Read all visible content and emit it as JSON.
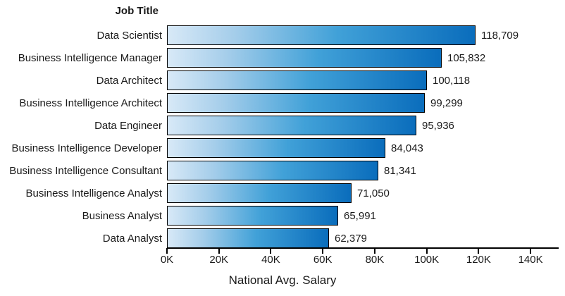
{
  "chart_data": {
    "type": "bar",
    "orientation": "horizontal",
    "title": "Job Title",
    "xlabel": "National Avg. Salary",
    "categories": [
      "Data Scientist",
      "Business Intelligence Manager",
      "Data Architect",
      "Business Intelligence Architect",
      "Data Engineer",
      "Business Intelligence Developer",
      "Business Intelligence Consultant",
      "Business Intelligence Analyst",
      "Business Analyst",
      "Data Analyst"
    ],
    "values": [
      118709,
      105832,
      100118,
      99299,
      95936,
      84043,
      81341,
      71050,
      65991,
      62379
    ],
    "value_labels": [
      "118,709",
      "105,832",
      "100,118",
      "99,299",
      "95,936",
      "84,043",
      "81,341",
      "71,050",
      "65,991",
      "62,379"
    ],
    "x_ticks": [
      {
        "value": 0,
        "label": "0K"
      },
      {
        "value": 20000,
        "label": "20K"
      },
      {
        "value": 40000,
        "label": "40K"
      },
      {
        "value": 60000,
        "label": "60K"
      },
      {
        "value": 80000,
        "label": "80K"
      },
      {
        "value": 100000,
        "label": "100K"
      },
      {
        "value": 120000,
        "label": "120K"
      },
      {
        "value": 140000,
        "label": "140K"
      }
    ],
    "xlim": [
      0,
      150000
    ],
    "grid": false,
    "legend": "none",
    "colors": {
      "bar_gradient_start": "#d8e9f7",
      "bar_gradient_quarter": "#a4cdea",
      "bar_gradient_mid": "#41a1d8",
      "bar_gradient_end": "#0a6dbc",
      "bar_border": "#000000",
      "axis": "#000000",
      "text": "#1a1a1a",
      "background": "#ffffff"
    }
  }
}
